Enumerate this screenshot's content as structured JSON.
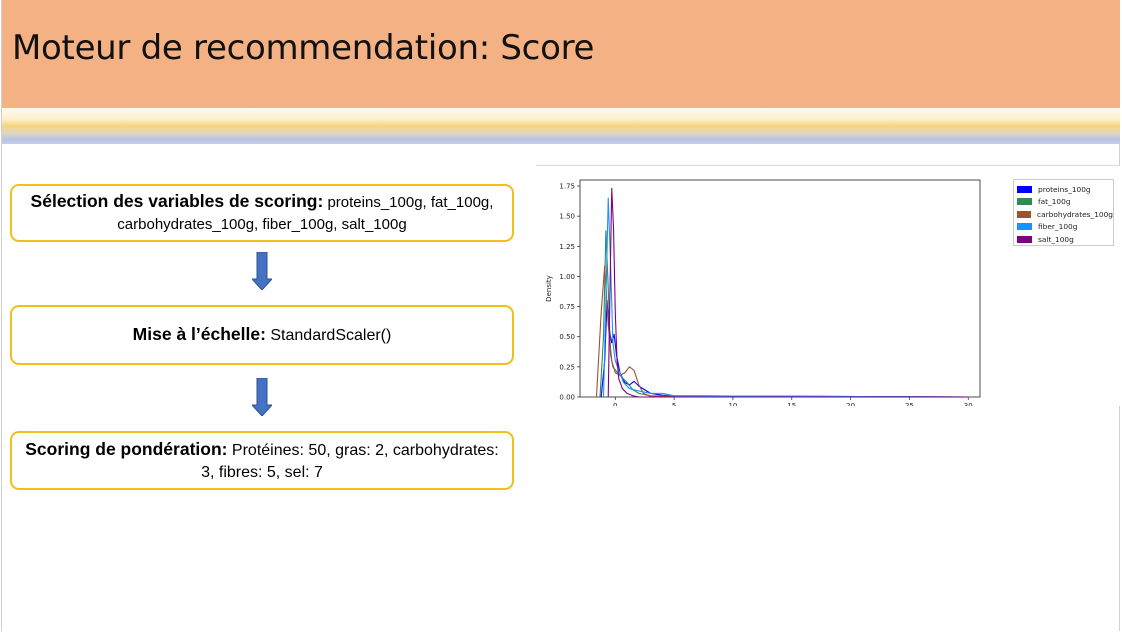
{
  "header": {
    "title": "Moteur de recommendation: Score"
  },
  "steps": {
    "selection": {
      "label": "Sélection des variables de scoring:",
      "text": " proteins_100g, fat_100g, carbohydrates_100g, fiber_100g, salt_100g"
    },
    "scaling": {
      "label": "Mise à l’échelle:",
      "text": "  StandardScaler()"
    },
    "weighting": {
      "label": "Scoring de pondération:",
      "text": " Protéines: 50, gras: 2, carbohydrates: 3, fibres: 5, sel: 7"
    }
  },
  "chart_data": {
    "type": "line",
    "title": "",
    "xlabel": "",
    "ylabel": "Density",
    "xlim": [
      -3,
      31
    ],
    "ylim": [
      0,
      1.8
    ],
    "x_ticks": [
      "0",
      "5",
      "10",
      "15",
      "20",
      "25",
      "30"
    ],
    "y_ticks": [
      "0.00",
      "0.25",
      "0.50",
      "0.75",
      "1.00",
      "1.25",
      "1.50",
      "1.75"
    ],
    "legend_position": "outside-right",
    "grid": false,
    "series": [
      {
        "name": "proteins_100g",
        "color": "#0000ff",
        "x": [
          -1.2,
          -0.9,
          -0.7,
          -0.5,
          -0.3,
          -0.1,
          0.1,
          0.4,
          0.8,
          1.2,
          1.6,
          2.0,
          2.5,
          3.0,
          4.0,
          5.0,
          30
        ],
        "y": [
          0.0,
          0.3,
          0.8,
          0.55,
          0.45,
          0.52,
          0.35,
          0.2,
          0.12,
          0.1,
          0.13,
          0.09,
          0.06,
          0.03,
          0.015,
          0.01,
          0.0
        ]
      },
      {
        "name": "fat_100g",
        "color": "#2e8b57",
        "x": [
          -1.3,
          -1.0,
          -0.8,
          -0.6,
          -0.4,
          -0.2,
          0.2,
          0.6,
          1.0,
          1.5,
          2.0,
          3.0,
          30
        ],
        "y": [
          0.0,
          0.5,
          1.38,
          0.9,
          0.35,
          0.25,
          0.2,
          0.16,
          0.12,
          0.06,
          0.03,
          0.01,
          0.0
        ]
      },
      {
        "name": "carbohydrates_100g",
        "color": "#a0522d",
        "x": [
          -1.6,
          -1.2,
          -0.9,
          -0.6,
          -0.3,
          0.0,
          0.4,
          0.8,
          1.2,
          1.6,
          2.0,
          2.4,
          3.0,
          30
        ],
        "y": [
          0.0,
          0.7,
          1.09,
          0.6,
          0.3,
          0.2,
          0.18,
          0.2,
          0.25,
          0.22,
          0.1,
          0.03,
          0.005,
          0.0
        ]
      },
      {
        "name": "fiber_100g",
        "color": "#1e90ff",
        "x": [
          -1.0,
          -0.8,
          -0.6,
          -0.4,
          -0.2,
          0.0,
          0.3,
          0.7,
          1.2,
          2.0,
          3.0,
          4.0,
          4.5,
          5.0,
          30
        ],
        "y": [
          0.0,
          0.8,
          1.65,
          1.1,
          0.45,
          0.3,
          0.22,
          0.12,
          0.07,
          0.05,
          0.03,
          0.03,
          0.02,
          0.01,
          0.0
        ]
      },
      {
        "name": "salt_100g",
        "color": "#800080",
        "x": [
          -0.6,
          -0.45,
          -0.3,
          -0.15,
          0.0,
          0.15,
          0.3,
          0.6,
          1.0,
          1.5,
          2.0,
          30
        ],
        "y": [
          0.0,
          0.9,
          1.73,
          1.4,
          0.7,
          0.3,
          0.15,
          0.07,
          0.03,
          0.01,
          0.0,
          0.0
        ]
      }
    ]
  }
}
